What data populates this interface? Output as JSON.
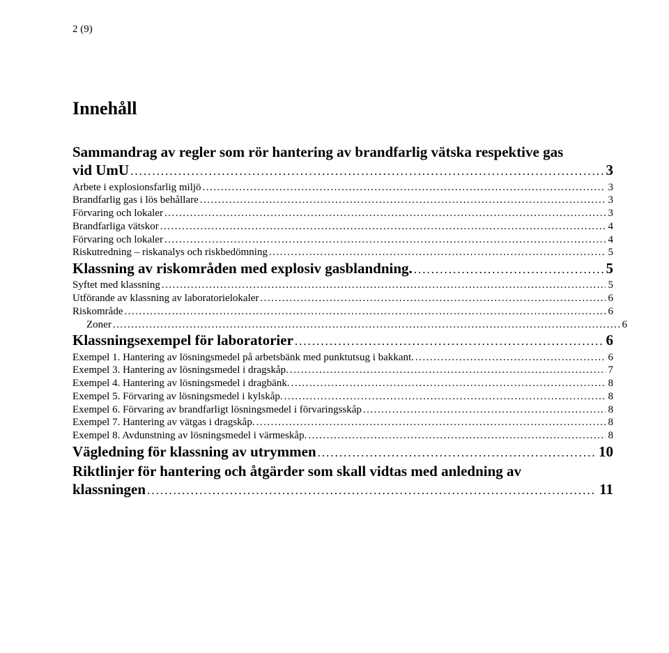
{
  "page_number_label": "2 (9)",
  "toc_title": "Innehåll",
  "entries": [
    {
      "level": "h1",
      "wrap": true,
      "label_lines": [
        "Sammandrag av regler som rör hantering av brandfarlig vätska respektive gas",
        "vid UmU"
      ],
      "page": "3"
    },
    {
      "level": "h2",
      "label": "Arbete i explosionsfarlig miljö",
      "page": "3"
    },
    {
      "level": "h2",
      "label": "Brandfarlig gas i lös behållare",
      "page": "3"
    },
    {
      "level": "h2",
      "label": "Förvaring och lokaler",
      "page": "3"
    },
    {
      "level": "h2",
      "label": "Brandfarliga vätskor",
      "page": "4"
    },
    {
      "level": "h2",
      "label": "Förvaring och lokaler",
      "page": "4"
    },
    {
      "level": "h2",
      "label": "Riskutredning – riskanalys och riskbedömning",
      "page": "5"
    },
    {
      "level": "h1",
      "label": "Klassning av riskområden med explosiv gasblandning.",
      "page": "5"
    },
    {
      "level": "h2",
      "label": "Syftet med klassning",
      "page": "5"
    },
    {
      "level": "h2",
      "label": "Utförande av klassning av laboratorielokaler",
      "page": "6"
    },
    {
      "level": "h2",
      "label": "Riskområde",
      "page": "6"
    },
    {
      "level": "h3",
      "label": "Zoner",
      "page": "6"
    },
    {
      "level": "h1",
      "label": "Klassningsexempel för laboratorier",
      "page": "6"
    },
    {
      "level": "h2",
      "label": "Exempel 1. Hantering av lösningsmedel på arbetsbänk med punktutsug i bakkant.",
      "page": "6"
    },
    {
      "level": "h2",
      "label": "Exempel 3. Hantering av lösningsmedel i dragskåp.",
      "page": "7"
    },
    {
      "level": "h2",
      "label": "Exempel 4. Hantering av lösningsmedel i dragbänk.",
      "page": "8"
    },
    {
      "level": "h2",
      "label": "Exempel 5. Förvaring av lösningsmedel i kylskåp.",
      "page": "8"
    },
    {
      "level": "h2",
      "label": "Exempel 6. Förvaring av brandfarligt lösningsmedel i förvaringsskåp",
      "page": "8"
    },
    {
      "level": "h2",
      "label": "Exempel 7. Hantering av vätgas i dragskåp.",
      "page": "8"
    },
    {
      "level": "h2",
      "label": "Exempel 8. Avdunstning av lösningsmedel i värmeskåp.",
      "page": "8"
    },
    {
      "level": "h1",
      "label": "Vägledning för klassning av utrymmen",
      "page": "10"
    },
    {
      "level": "h1",
      "wrap": true,
      "label_lines": [
        "Riktlinjer för hantering och åtgärder som skall vidtas med anledning av",
        "klassningen"
      ],
      "page": "11"
    }
  ]
}
